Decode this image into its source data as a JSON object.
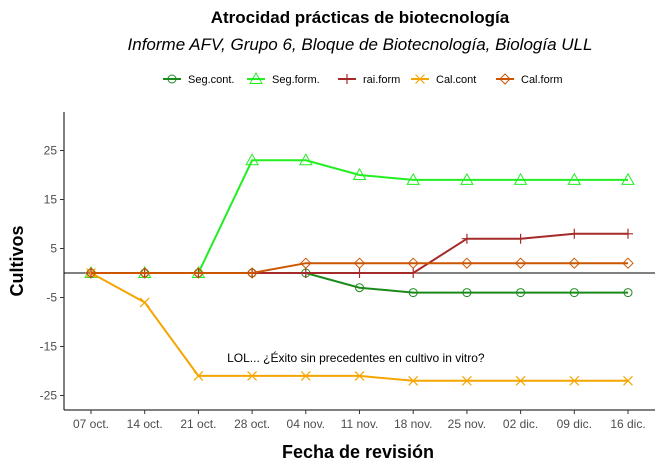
{
  "chart_data": {
    "type": "line",
    "title": "Atrocidad prácticas de biotecnología",
    "subtitle": "Informe AFV, Grupo 6, Bloque de Biotecnología, Biología ULL",
    "xlabel": "Fecha de revisión",
    "ylabel": "Cultivos",
    "categories": [
      "07 oct.",
      "14 oct.",
      "21 oct.",
      "28 oct.",
      "04 nov.",
      "11 nov.",
      "18 nov.",
      "25 nov.",
      "02 dic.",
      "09 dic.",
      "16 dic."
    ],
    "yticks": [
      25,
      15,
      5,
      -5,
      -15,
      -25
    ],
    "yticklabels": [
      "25",
      "15",
      "5",
      "-5",
      "-15",
      "-25"
    ],
    "ylim": [
      -28,
      32
    ],
    "hline": 0,
    "grid": false,
    "legend_position": "top",
    "series": [
      {
        "name": "Seg.cont.",
        "marker": "circle",
        "color": "#1a8a1a",
        "values": [
          0,
          0,
          0,
          0,
          0,
          -3,
          -4,
          -4,
          -4,
          -4,
          -4
        ]
      },
      {
        "name": "Seg.form.",
        "marker": "triangle",
        "color": "#22ee22",
        "values": [
          0,
          0,
          0,
          23,
          23,
          20,
          19,
          19,
          19,
          19,
          19
        ]
      },
      {
        "name": "rai.form",
        "marker": "plus",
        "color": "#a52a2a",
        "values": [
          0,
          0,
          0,
          0,
          0,
          0,
          0,
          7,
          7,
          8,
          8
        ]
      },
      {
        "name": "Cal.cont",
        "marker": "cross",
        "color": "#f5a500",
        "values": [
          0,
          -6,
          -21,
          -21,
          -21,
          -21,
          -22,
          -22,
          -22,
          -22,
          -22
        ]
      },
      {
        "name": "Cal.form",
        "marker": "diamond",
        "color": "#cc5500",
        "values": [
          0,
          0,
          0,
          0,
          2,
          2,
          2,
          2,
          2,
          2,
          2
        ]
      }
    ],
    "annotations": [
      {
        "text": "LOL... ¿Éxito sin precedentes en cultivo in vitro?",
        "x": "28 oct.",
        "y": -18
      }
    ]
  }
}
